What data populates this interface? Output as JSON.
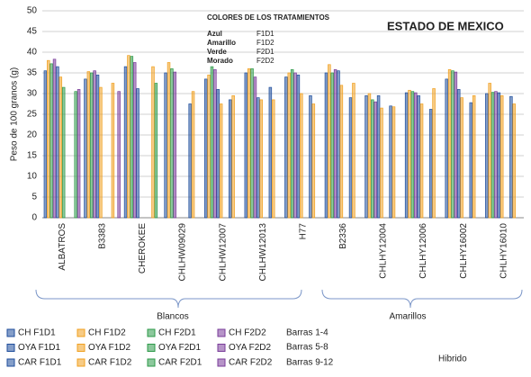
{
  "chart_data": {
    "type": "bar",
    "title": "ESTADO DE MEXICO",
    "y_label": "Peso de 100 granos (g)",
    "ylim": [
      0,
      50
    ],
    "yticks": [
      0,
      5,
      10,
      15,
      20,
      25,
      30,
      35,
      40,
      45,
      50
    ],
    "grid": true,
    "categories": [
      "ALBATROS",
      "B3383",
      "CHEROKEE",
      "CHLHW09029",
      "CHLHW12007",
      "CHLHW12013",
      "H77",
      "B2336",
      "CHLHY12004",
      "CHLHY12006",
      "CHLHY16002",
      "CHLHY16010"
    ],
    "series": [
      {
        "name": "CH F1D1",
        "color": "#1f4e9c",
        "values": [
          35.5,
          33.5,
          36.5,
          35,
          33.5,
          35,
          34,
          35,
          29.5,
          30.2,
          33.5,
          30
        ]
      },
      {
        "name": "CH F1D2",
        "color": "#f0a020",
        "values": [
          38,
          35.3,
          39.2,
          37.5,
          34.5,
          36,
          35,
          37,
          30,
          30.8,
          35.8,
          32.5
        ]
      },
      {
        "name": "CH F2D1",
        "color": "#2e9a4a",
        "values": [
          37.2,
          35,
          39,
          36,
          36.5,
          36,
          35.8,
          35,
          28.5,
          30.5,
          35.5,
          30.3
        ]
      },
      {
        "name": "CH F2D2",
        "color": "#7a3d9a",
        "values": [
          38.3,
          35.5,
          37.5,
          35.2,
          35.8,
          34,
          35,
          35.8,
          28,
          30.2,
          35.2,
          30.5
        ]
      },
      {
        "name": "OYA F1D1",
        "color": "#1f4e9c",
        "values": [
          36.5,
          34.5,
          31.2,
          null,
          31,
          29,
          34.5,
          35.5,
          29.5,
          29.5,
          31,
          30.2
        ]
      },
      {
        "name": "OYA F1D2",
        "color": "#f0a020",
        "values": [
          34,
          31.5,
          null,
          null,
          27.5,
          28.5,
          30,
          32,
          26.5,
          27.5,
          29,
          29.5
        ]
      },
      {
        "name": "OYA F2D1",
        "color": "#2e9a4a",
        "values": [
          31.5,
          null,
          null,
          null,
          null,
          null,
          null,
          null,
          null,
          null,
          null,
          null
        ]
      },
      {
        "name": "OYA F2D2",
        "color": "#7a3d9a",
        "values": [
          null,
          null,
          null,
          null,
          null,
          null,
          null,
          null,
          null,
          null,
          null,
          null
        ]
      },
      {
        "name": "CAR F1D1",
        "color": "#1f4e9c",
        "values": [
          null,
          null,
          null,
          27.5,
          28.5,
          31.5,
          29.5,
          29,
          27,
          26.2,
          27.8,
          29.3
        ]
      },
      {
        "name": "CAR F1D2",
        "color": "#f0a020",
        "values": [
          null,
          32.5,
          36.5,
          30.5,
          29.5,
          28.5,
          27.5,
          32.5,
          26.8,
          31.2,
          29.5,
          27.5
        ]
      },
      {
        "name": "CAR F2D1",
        "color": "#2e9a4a",
        "values": [
          30.5,
          null,
          32.5,
          null,
          null,
          null,
          null,
          null,
          null,
          null,
          null,
          null
        ]
      },
      {
        "name": "CAR F2D2",
        "color": "#7a3d9a",
        "values": [
          31,
          30.5,
          null,
          null,
          null,
          null,
          null,
          null,
          null,
          null,
          null,
          null
        ]
      }
    ],
    "color_key": {
      "title": "COLORES DE LOS TRATAMIENTOS",
      "rows": [
        {
          "color": "Azul",
          "treatment": "F1D1"
        },
        {
          "color": "Amarillo",
          "treatment": "F1D2"
        },
        {
          "color": "Verde",
          "treatment": "F2D1"
        },
        {
          "color": "Morado",
          "treatment": "F2D2"
        }
      ]
    },
    "groups": [
      "Blancos",
      "Amarillos"
    ],
    "bar_notes": [
      "Barras 1-4",
      "Barras 5-8",
      "Barras 9-12"
    ],
    "footnote": "Hibrido"
  }
}
